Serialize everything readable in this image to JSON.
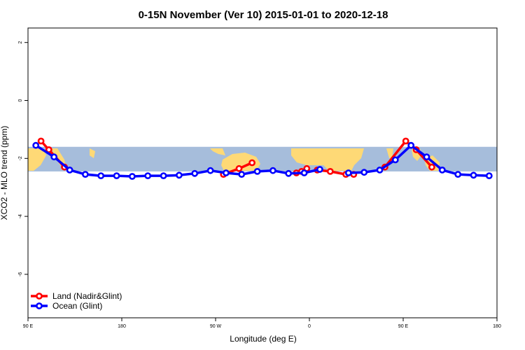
{
  "chart_data": {
    "type": "line",
    "title": "0-15N November (Ver 10)   2015-01-01 to 2020-12-18",
    "xlabel": "Longitude (deg E)",
    "ylabel": "XCO2 - MLO trend (ppm)",
    "xlim": [
      90,
      540
    ],
    "ylim": [
      -7.5,
      2.5
    ],
    "x_ticks": [
      {
        "value": 90,
        "label": "90 E"
      },
      {
        "value": 180,
        "label": "180"
      },
      {
        "value": 270,
        "label": "90 W"
      },
      {
        "value": 360,
        "label": "0"
      },
      {
        "value": 450,
        "label": "90 E"
      },
      {
        "value": 540,
        "label": "180"
      }
    ],
    "y_ticks": [
      {
        "value": -6,
        "label": "-6"
      },
      {
        "value": -4,
        "label": "-4"
      },
      {
        "value": -2,
        "label": "-2"
      },
      {
        "value": 0,
        "label": "0"
      },
      {
        "value": 2,
        "label": "2"
      }
    ],
    "map_band": {
      "y_range": [
        -2.45,
        -1.6
      ],
      "ocean_color": "#a6bddb",
      "land_color": "#fed976"
    },
    "grid": false,
    "legend_position": "bottom-left",
    "series": [
      {
        "name": "Land (Nadir&Glint)",
        "color": "#ff0000",
        "segments": [
          [
            [
              102.5,
              -1.4
            ],
            [
              110,
              -1.7
            ],
            [
              125,
              -2.3
            ]
          ],
          [
            [
              277.5,
              -2.55
            ],
            [
              292.5,
              -2.35
            ],
            [
              305,
              -2.15
            ]
          ],
          [
            [
              347.5,
              -2.5
            ],
            [
              352.5,
              -2.45
            ],
            [
              357.5,
              -2.35
            ]
          ],
          [
            [
              367.5,
              -2.4
            ],
            [
              380,
              -2.45
            ],
            [
              395,
              -2.55
            ],
            [
              402.5,
              -2.55
            ]
          ],
          [
            [
              432.5,
              -2.3
            ],
            [
              452.5,
              -1.4
            ],
            [
              462.5,
              -1.7
            ],
            [
              477.5,
              -2.3
            ]
          ]
        ]
      },
      {
        "name": "Ocean (Glint)",
        "color": "#0000ff",
        "segments": [
          [
            [
              97.5,
              -1.55
            ],
            [
              115,
              -1.95
            ],
            [
              130,
              -2.4
            ],
            [
              145,
              -2.55
            ],
            [
              160,
              -2.6
            ],
            [
              175,
              -2.6
            ],
            [
              190,
              -2.62
            ],
            [
              205,
              -2.6
            ],
            [
              220,
              -2.6
            ],
            [
              235,
              -2.58
            ],
            [
              250,
              -2.52
            ],
            [
              265,
              -2.42
            ],
            [
              280,
              -2.5
            ],
            [
              295,
              -2.55
            ],
            [
              310,
              -2.45
            ],
            [
              325,
              -2.42
            ],
            [
              340,
              -2.52
            ],
            [
              355,
              -2.5
            ],
            [
              370,
              -2.38
            ]
          ],
          [
            [
              397.5,
              -2.5
            ],
            [
              412.5,
              -2.48
            ],
            [
              427.5,
              -2.4
            ],
            [
              442.5,
              -2.05
            ],
            [
              457.5,
              -1.55
            ],
            [
              472.5,
              -1.95
            ],
            [
              487.5,
              -2.4
            ],
            [
              502.5,
              -2.55
            ],
            [
              517.5,
              -2.58
            ],
            [
              532.5,
              -2.6
            ]
          ]
        ]
      }
    ]
  }
}
